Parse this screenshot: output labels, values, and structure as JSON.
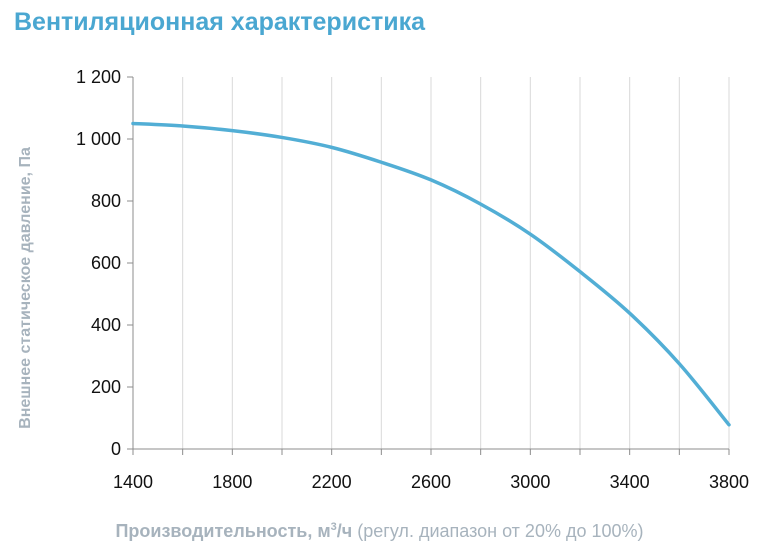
{
  "title": "Вентиляционная характеристика",
  "chart_data": {
    "type": "line",
    "title": "Вентиляционная характеристика",
    "ylabel": "Внешнее статическое давление, Па",
    "xlabel": {
      "main": "Производительность",
      "unit_prefix": ", м",
      "unit_exp": "3",
      "unit_suffix": "/ч",
      "note": " (регул. диапазон от 20% до 100%)"
    },
    "xlim": [
      1400,
      3800
    ],
    "ylim": [
      0,
      1200
    ],
    "x_ticks": [
      1400,
      1800,
      2200,
      2600,
      3000,
      3400,
      3800
    ],
    "x_tick_labels": [
      "1400",
      "1800",
      "2200",
      "2600",
      "3000",
      "3400",
      "3800"
    ],
    "y_ticks": [
      0,
      200,
      400,
      600,
      800,
      1000,
      1200
    ],
    "y_tick_labels": [
      "0",
      "200",
      "400",
      "600",
      "800",
      "1 000",
      "1 200"
    ],
    "x_minor_step": 200,
    "grid": {
      "vertical": true,
      "horizontal": false
    },
    "color": "#52aed5",
    "series": [
      {
        "x": [
          1400,
          1600,
          1800,
          2000,
          2200,
          2400,
          2600,
          2800,
          3000,
          3200,
          3400,
          3600,
          3800
        ],
        "y": [
          1050,
          1042,
          1027,
          1005,
          973,
          925,
          868,
          790,
          693,
          572,
          438,
          275,
          78
        ]
      }
    ]
  }
}
